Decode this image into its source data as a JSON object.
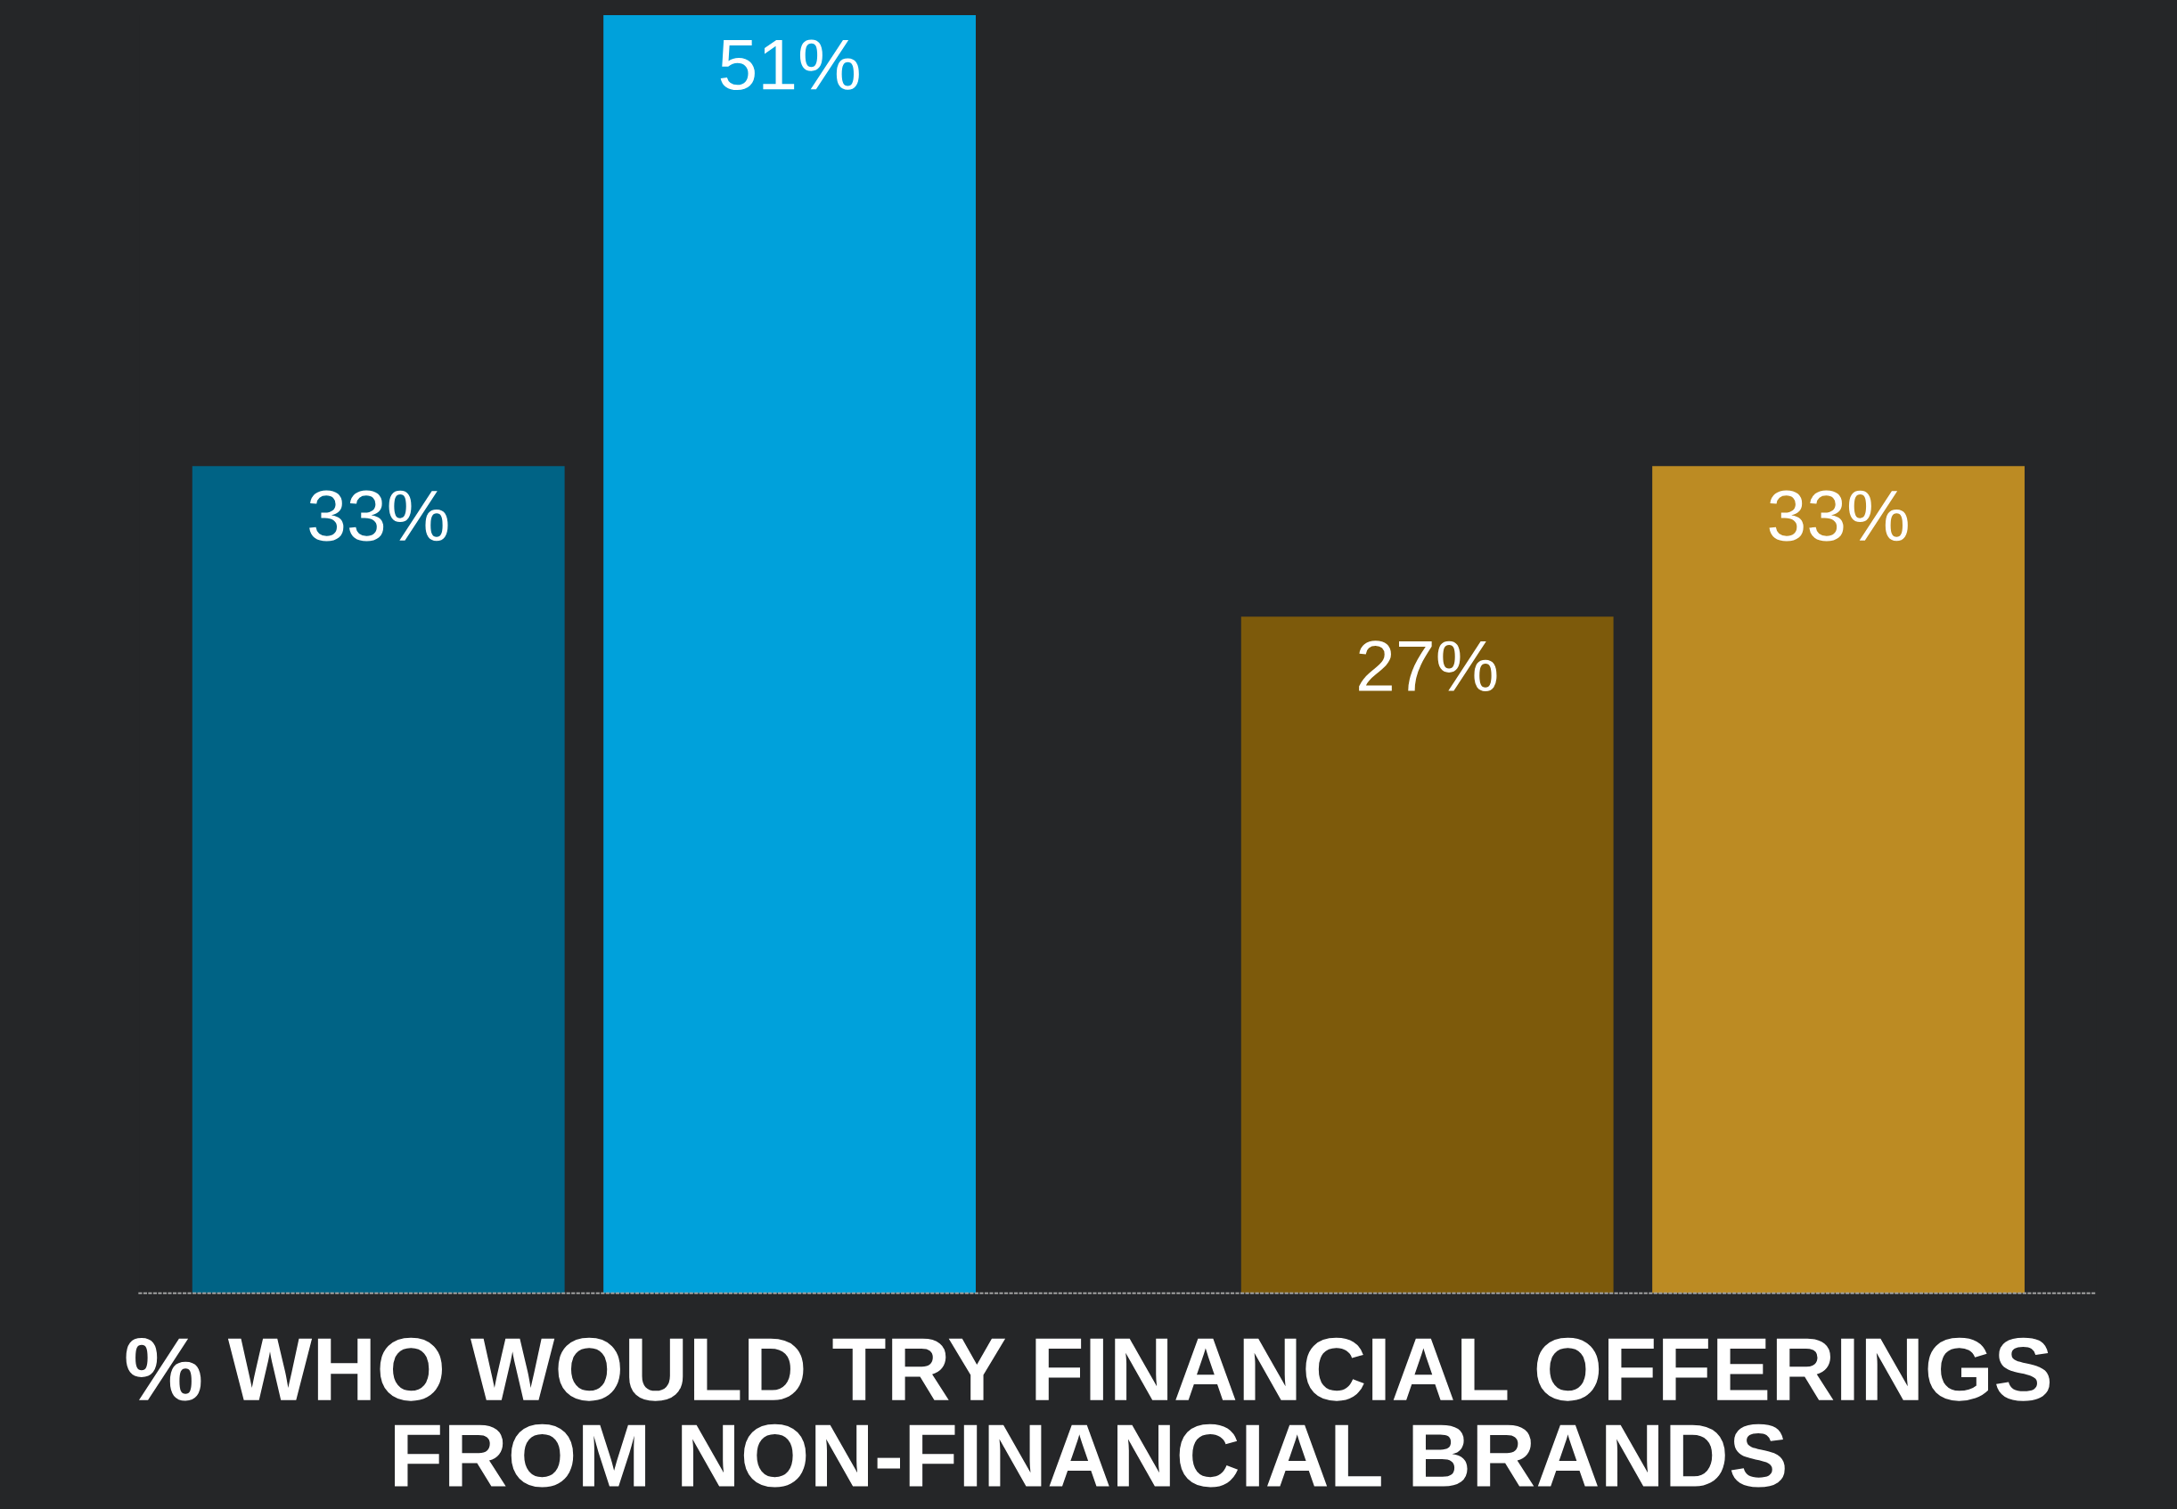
{
  "chart_data": {
    "type": "bar",
    "title": "% WHO WOULD TRY FINANCIAL OFFERINGS FROM NON-FINANCIAL BRANDS",
    "categories": [
      null,
      null
    ],
    "series": [
      {
        "colors": [
          "#006385",
          "#7d5a0b"
        ],
        "values": [
          33,
          27
        ],
        "value_labels": [
          "33%",
          "27%"
        ]
      },
      {
        "colors": [
          "#00a1db",
          "#bc8b23"
        ],
        "values": [
          51,
          33
        ],
        "value_labels": [
          "51%",
          "33%"
        ]
      }
    ],
    "grid": false,
    "legend": false
  }
}
